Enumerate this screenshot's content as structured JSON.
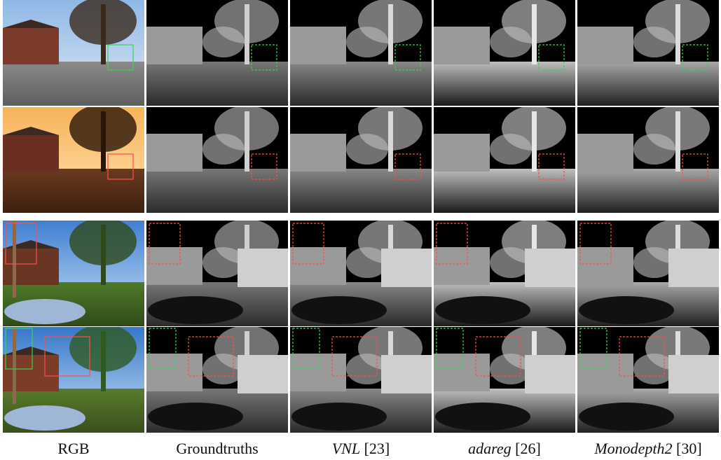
{
  "figure": {
    "columns": [
      {
        "key": "rgb",
        "name": "RGB",
        "italic": false,
        "ref": ""
      },
      {
        "key": "gt",
        "name": "Groundtruths",
        "italic": false,
        "ref": ""
      },
      {
        "key": "vnl",
        "name": "VNL",
        "italic": true,
        "ref": "[23]"
      },
      {
        "key": "adareg",
        "name": "adareg",
        "italic": true,
        "ref": "[26]"
      },
      {
        "key": "monodepth2",
        "name": "Monodepth2",
        "italic": true,
        "ref": "[30]"
      }
    ],
    "rows": [
      {
        "scene": "house-street-sunny",
        "box_colors": [
          "#39d353"
        ]
      },
      {
        "scene": "street-sunset",
        "box_colors": [
          "#ff4d4d"
        ]
      },
      {
        "scene": "street-car-sign",
        "box_colors": [
          "#ff4d4d"
        ]
      },
      {
        "scene": "street-car-tree",
        "box_colors": [
          "#39d353",
          "#ff4d4d"
        ]
      }
    ]
  }
}
